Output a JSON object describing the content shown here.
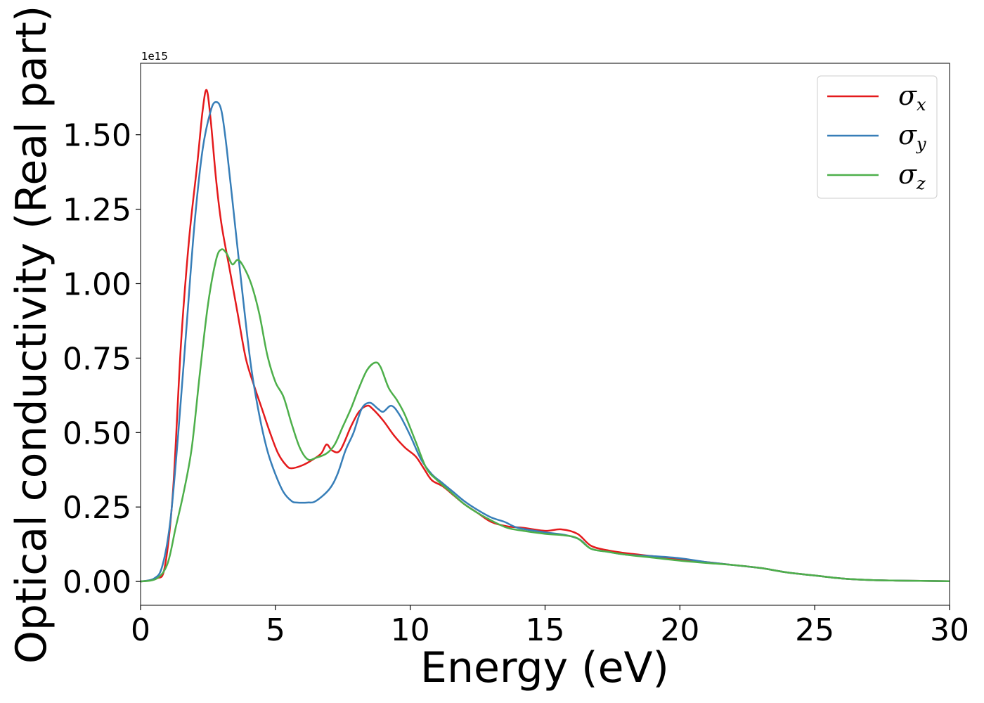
{
  "chart_data": {
    "type": "line",
    "xlabel": "Energy (eV)",
    "ylabel": "Optical conductivity (Real part)",
    "y_offset_label": "1e15",
    "xlim": [
      0,
      30
    ],
    "ylim": [
      -0.08,
      1.74
    ],
    "x_ticks": [
      0,
      5,
      10,
      15,
      20,
      25,
      30
    ],
    "x_tick_labels": [
      "0",
      "5",
      "10",
      "15",
      "20",
      "25",
      "30"
    ],
    "y_ticks": [
      0.0,
      0.25,
      0.5,
      0.75,
      1.0,
      1.25,
      1.5
    ],
    "y_tick_labels": [
      "0.00",
      "0.25",
      "0.50",
      "0.75",
      "1.00",
      "1.25",
      "1.50"
    ],
    "grid": false,
    "legend_position": "top-right",
    "series": [
      {
        "symbol": "σ",
        "subscript": "x",
        "color": "#e41a1c",
        "points": [
          [
            0,
            0
          ],
          [
            0.6,
            0.01
          ],
          [
            0.9,
            0.05
          ],
          [
            1.2,
            0.3
          ],
          [
            1.5,
            0.8
          ],
          [
            1.8,
            1.15
          ],
          [
            2.1,
            1.4
          ],
          [
            2.3,
            1.58
          ],
          [
            2.45,
            1.65
          ],
          [
            2.6,
            1.55
          ],
          [
            2.8,
            1.35
          ],
          [
            3.0,
            1.2
          ],
          [
            3.3,
            1.05
          ],
          [
            3.6,
            0.9
          ],
          [
            3.9,
            0.75
          ],
          [
            4.2,
            0.66
          ],
          [
            4.5,
            0.58
          ],
          [
            4.8,
            0.5
          ],
          [
            5.1,
            0.43
          ],
          [
            5.4,
            0.39
          ],
          [
            5.6,
            0.38
          ],
          [
            6.0,
            0.39
          ],
          [
            6.4,
            0.41
          ],
          [
            6.7,
            0.43
          ],
          [
            6.9,
            0.46
          ],
          [
            7.1,
            0.44
          ],
          [
            7.4,
            0.44
          ],
          [
            7.8,
            0.52
          ],
          [
            8.1,
            0.57
          ],
          [
            8.4,
            0.59
          ],
          [
            8.6,
            0.58
          ],
          [
            9.0,
            0.54
          ],
          [
            9.4,
            0.49
          ],
          [
            9.8,
            0.45
          ],
          [
            10.2,
            0.42
          ],
          [
            10.5,
            0.38
          ],
          [
            10.8,
            0.34
          ],
          [
            11.2,
            0.32
          ],
          [
            11.6,
            0.29
          ],
          [
            12.0,
            0.26
          ],
          [
            12.5,
            0.23
          ],
          [
            13.0,
            0.2
          ],
          [
            13.6,
            0.185
          ],
          [
            14.2,
            0.18
          ],
          [
            15.0,
            0.17
          ],
          [
            15.6,
            0.175
          ],
          [
            16.2,
            0.16
          ],
          [
            16.7,
            0.12
          ],
          [
            17.3,
            0.105
          ],
          [
            18.0,
            0.095
          ],
          [
            19.0,
            0.085
          ],
          [
            20.0,
            0.075
          ],
          [
            21.0,
            0.065
          ],
          [
            22.0,
            0.055
          ],
          [
            23.0,
            0.045
          ],
          [
            24.0,
            0.03
          ],
          [
            25.0,
            0.02
          ],
          [
            26.0,
            0.01
          ],
          [
            27.0,
            0.005
          ],
          [
            28.0,
            0.003
          ],
          [
            30.0,
            0.001
          ]
        ]
      },
      {
        "symbol": "σ",
        "subscript": "y",
        "color": "#377eb8",
        "points": [
          [
            0,
            0
          ],
          [
            0.5,
            0.01
          ],
          [
            0.8,
            0.05
          ],
          [
            1.1,
            0.2
          ],
          [
            1.4,
            0.5
          ],
          [
            1.7,
            0.85
          ],
          [
            2.0,
            1.2
          ],
          [
            2.3,
            1.45
          ],
          [
            2.6,
            1.58
          ],
          [
            2.8,
            1.61
          ],
          [
            3.0,
            1.58
          ],
          [
            3.2,
            1.45
          ],
          [
            3.5,
            1.2
          ],
          [
            3.8,
            0.95
          ],
          [
            4.1,
            0.72
          ],
          [
            4.4,
            0.56
          ],
          [
            4.7,
            0.44
          ],
          [
            5.0,
            0.36
          ],
          [
            5.3,
            0.3
          ],
          [
            5.6,
            0.27
          ],
          [
            5.8,
            0.265
          ],
          [
            6.2,
            0.265
          ],
          [
            6.5,
            0.27
          ],
          [
            7.0,
            0.31
          ],
          [
            7.3,
            0.36
          ],
          [
            7.6,
            0.44
          ],
          [
            7.9,
            0.5
          ],
          [
            8.2,
            0.58
          ],
          [
            8.5,
            0.6
          ],
          [
            8.8,
            0.58
          ],
          [
            9.0,
            0.57
          ],
          [
            9.3,
            0.59
          ],
          [
            9.6,
            0.56
          ],
          [
            10.0,
            0.49
          ],
          [
            10.4,
            0.41
          ],
          [
            10.8,
            0.36
          ],
          [
            11.2,
            0.33
          ],
          [
            11.6,
            0.3
          ],
          [
            12.0,
            0.27
          ],
          [
            12.5,
            0.24
          ],
          [
            13.0,
            0.215
          ],
          [
            13.5,
            0.2
          ],
          [
            14.0,
            0.18
          ],
          [
            15.0,
            0.165
          ],
          [
            15.8,
            0.155
          ],
          [
            16.3,
            0.14
          ],
          [
            16.7,
            0.11
          ],
          [
            17.3,
            0.1
          ],
          [
            18.0,
            0.09
          ],
          [
            19.0,
            0.085
          ],
          [
            20.0,
            0.078
          ],
          [
            21.0,
            0.065
          ],
          [
            22.0,
            0.055
          ],
          [
            23.0,
            0.045
          ],
          [
            24.0,
            0.03
          ],
          [
            25.0,
            0.02
          ],
          [
            26.0,
            0.01
          ],
          [
            27.0,
            0.005
          ],
          [
            28.0,
            0.003
          ],
          [
            30.0,
            0.001
          ]
        ]
      },
      {
        "symbol": "σ",
        "subscript": "z",
        "color": "#4daf4a",
        "points": [
          [
            0,
            0
          ],
          [
            0.6,
            0.01
          ],
          [
            1.0,
            0.06
          ],
          [
            1.3,
            0.18
          ],
          [
            1.6,
            0.3
          ],
          [
            1.9,
            0.45
          ],
          [
            2.2,
            0.7
          ],
          [
            2.5,
            0.93
          ],
          [
            2.8,
            1.08
          ],
          [
            3.0,
            1.115
          ],
          [
            3.2,
            1.1
          ],
          [
            3.4,
            1.065
          ],
          [
            3.6,
            1.08
          ],
          [
            3.8,
            1.06
          ],
          [
            4.1,
            1.0
          ],
          [
            4.4,
            0.9
          ],
          [
            4.7,
            0.76
          ],
          [
            5.0,
            0.67
          ],
          [
            5.3,
            0.62
          ],
          [
            5.6,
            0.53
          ],
          [
            5.9,
            0.45
          ],
          [
            6.2,
            0.41
          ],
          [
            6.5,
            0.415
          ],
          [
            6.9,
            0.43
          ],
          [
            7.2,
            0.46
          ],
          [
            7.5,
            0.52
          ],
          [
            7.8,
            0.58
          ],
          [
            8.1,
            0.65
          ],
          [
            8.4,
            0.71
          ],
          [
            8.7,
            0.735
          ],
          [
            8.9,
            0.72
          ],
          [
            9.2,
            0.65
          ],
          [
            9.5,
            0.61
          ],
          [
            9.8,
            0.56
          ],
          [
            10.2,
            0.47
          ],
          [
            10.6,
            0.38
          ],
          [
            11.0,
            0.34
          ],
          [
            11.5,
            0.3
          ],
          [
            12.0,
            0.26
          ],
          [
            12.5,
            0.23
          ],
          [
            13.0,
            0.205
          ],
          [
            13.6,
            0.18
          ],
          [
            14.2,
            0.17
          ],
          [
            15.0,
            0.16
          ],
          [
            15.7,
            0.155
          ],
          [
            16.2,
            0.145
          ],
          [
            16.7,
            0.11
          ],
          [
            17.3,
            0.1
          ],
          [
            18.0,
            0.09
          ],
          [
            19.0,
            0.08
          ],
          [
            20.0,
            0.07
          ],
          [
            21.0,
            0.062
          ],
          [
            22.0,
            0.055
          ],
          [
            23.0,
            0.045
          ],
          [
            24.0,
            0.03
          ],
          [
            25.0,
            0.02
          ],
          [
            26.0,
            0.01
          ],
          [
            27.0,
            0.005
          ],
          [
            28.0,
            0.003
          ],
          [
            30.0,
            0.001
          ]
        ]
      }
    ]
  }
}
